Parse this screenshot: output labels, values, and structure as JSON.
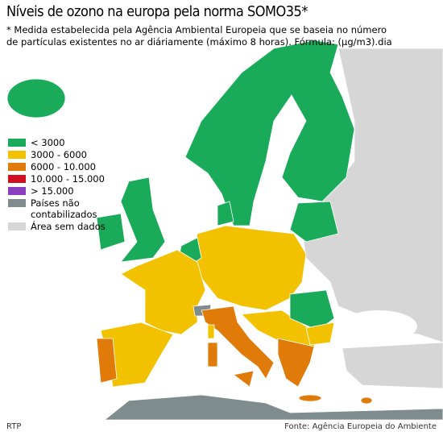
{
  "title": "Níveis de ozono na europa pela norma SOMO35*",
  "subtitle": "* Medida estabelecida pela Agência Ambiental Europeia que se baseia no número de partículas existentes no ar diáriamente (máximo 8 horas). Fórmula: (µg/m3).dia",
  "legend": [
    {
      "label": "< 3000",
      "color": "#1aab5a"
    },
    {
      "label": "3000 - 6000",
      "color": "#f2c200"
    },
    {
      "label": "6000 - 10.000",
      "color": "#e07b0a"
    },
    {
      "label": "10.000 - 15.000",
      "color": "#d01020"
    },
    {
      "label": "> 15.000",
      "color": "#8a3fc0"
    },
    {
      "label": "Países não contabilizados",
      "color": "#7f8c8d"
    },
    {
      "label": "Área sem dados",
      "color": "#d6d6d6"
    }
  ],
  "footer": {
    "credit": "RTP",
    "source": "Fonte: Agência Europeia do Ambiente"
  }
}
